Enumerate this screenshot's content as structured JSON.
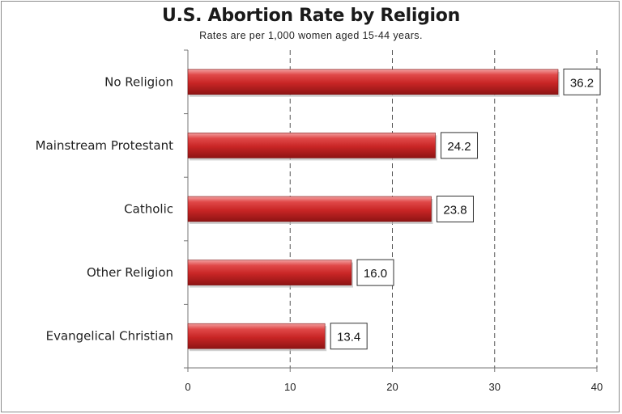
{
  "chart_data": {
    "type": "bar",
    "orientation": "horizontal",
    "title": "U.S. Abortion Rate by Religion",
    "subtitle": "Rates are per 1,000 women aged 15-44 years.",
    "categories": [
      "No Religion",
      "Mainstream Protestant",
      "Catholic",
      "Other Religion",
      "Evangelical Christian"
    ],
    "values": [
      36.2,
      24.2,
      23.8,
      16.0,
      13.4
    ],
    "data_labels": [
      "36.2",
      "24.2",
      "23.8",
      "16.0",
      "13.4"
    ],
    "xlim": [
      0,
      40
    ],
    "xticks": [
      0,
      10,
      20,
      30,
      40
    ],
    "grid": "vertical dashed",
    "legend": "none",
    "bar_color": "#cc2a2a"
  }
}
